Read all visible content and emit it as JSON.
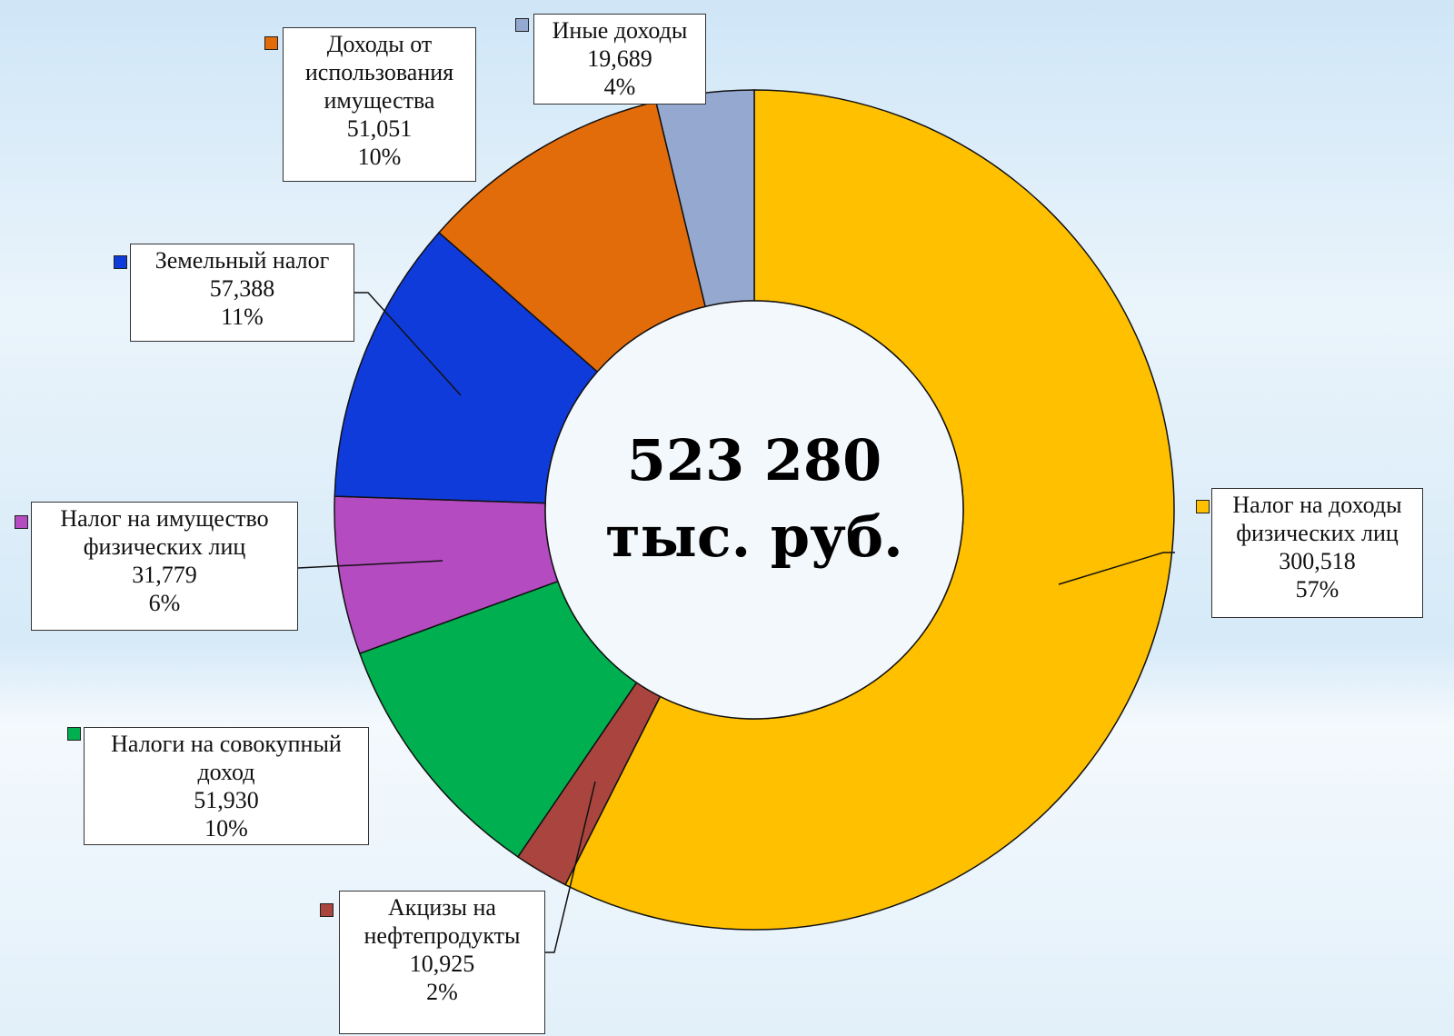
{
  "chart_data": {
    "type": "donut",
    "center_text": [
      "523 280",
      "тыс. руб."
    ],
    "categories": [
      "Налог на доходы физических лиц",
      "Акцизы на нефтепродукты",
      "Налоги на совокупный доход",
      "Налог на имущество физических лиц",
      "Земельный налог",
      "Доходы от использования имущества",
      "Иные доходы"
    ],
    "values": [
      300518,
      10925,
      51930,
      31779,
      57388,
      51051,
      19689
    ],
    "value_labels": [
      "300,518",
      "10,925",
      "51,930",
      "31,779",
      "57,388",
      "51,051",
      "19,689"
    ],
    "shares": [
      57,
      2,
      10,
      6,
      11,
      10,
      4
    ],
    "share_labels": [
      "57%",
      "2%",
      "10%",
      "6%",
      "11%",
      "10%",
      "4%"
    ],
    "colors": [
      "#FFC000",
      "#A9443E",
      "#00B050",
      "#B44BC0",
      "#0F3BDB",
      "#E36C0A",
      "#95A9D0"
    ]
  }
}
